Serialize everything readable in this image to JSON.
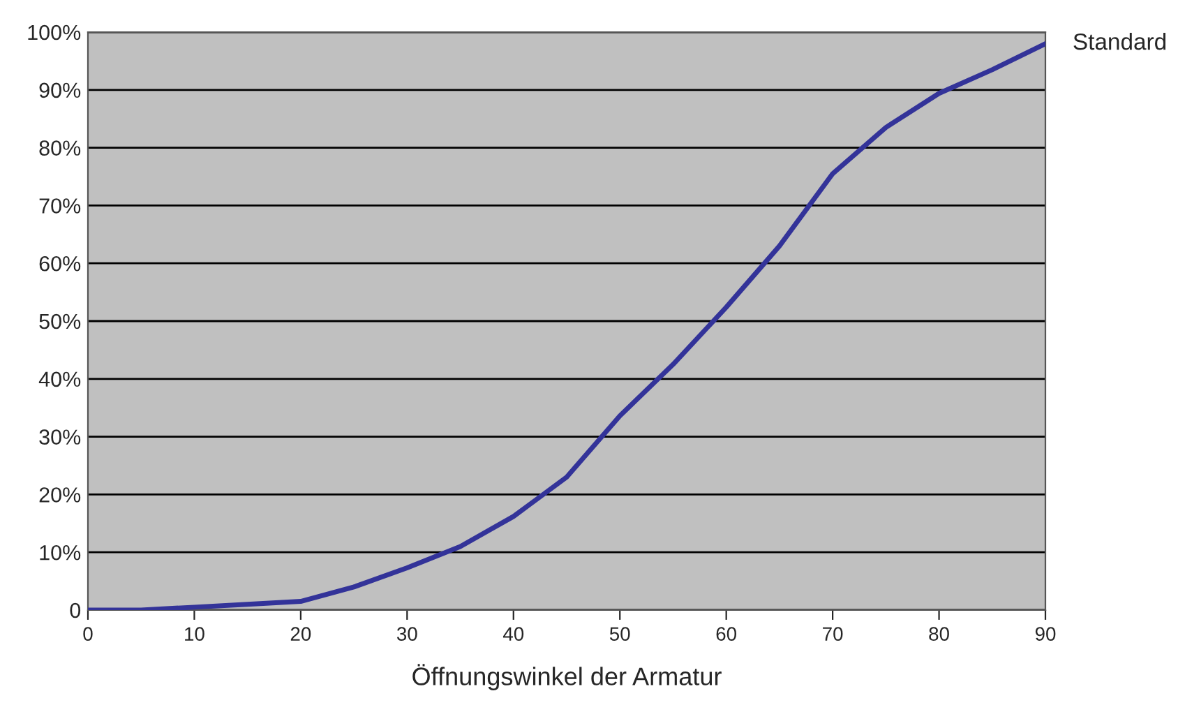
{
  "chart_data": {
    "type": "line",
    "xlabel": "Öffnungswinkel der Armatur",
    "x": [
      0,
      5,
      10,
      15,
      20,
      25,
      30,
      35,
      40,
      45,
      50,
      55,
      60,
      65,
      70,
      75,
      80,
      85,
      90
    ],
    "series": [
      {
        "name": "Standard",
        "color": "#333399",
        "values": [
          0,
          0,
          0.5,
          1,
          1.5,
          4,
          7.3,
          11,
          16.2,
          23,
          33.6,
          42.5,
          52.4,
          63,
          75.5,
          83.5,
          89.4,
          93.5,
          98
        ]
      }
    ],
    "xlim": [
      0,
      90
    ],
    "xticks": [
      0,
      10,
      20,
      30,
      40,
      50,
      60,
      70,
      80,
      90
    ],
    "ylim": [
      0,
      100
    ],
    "yticks": [
      {
        "value": 0,
        "label": "0"
      },
      {
        "value": 10,
        "label": "10%"
      },
      {
        "value": 20,
        "label": "20%"
      },
      {
        "value": 30,
        "label": "30%"
      },
      {
        "value": 40,
        "label": "40%"
      },
      {
        "value": 50,
        "label": "50%"
      },
      {
        "value": 60,
        "label": "60%"
      },
      {
        "value": 70,
        "label": "70%"
      },
      {
        "value": 80,
        "label": "80%"
      },
      {
        "value": 90,
        "label": "90%"
      },
      {
        "value": 100,
        "label": "100%"
      }
    ],
    "grid": "y",
    "legend": false,
    "marker": "none",
    "line_style": "solid"
  }
}
